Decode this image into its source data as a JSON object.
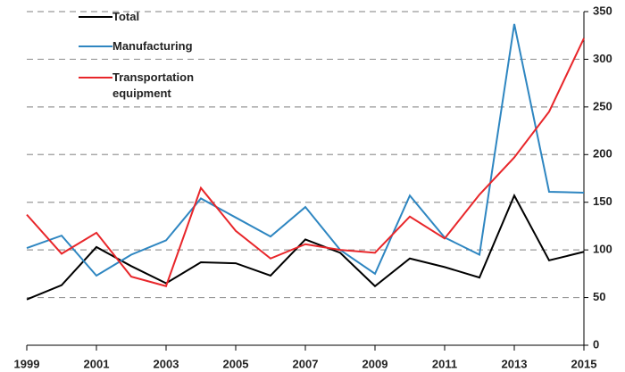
{
  "chart_data": {
    "type": "line",
    "x": [
      1999,
      2000,
      2001,
      2002,
      2003,
      2004,
      2005,
      2006,
      2007,
      2008,
      2009,
      2010,
      2011,
      2012,
      2013,
      2014,
      2015
    ],
    "series": [
      {
        "name": "Total",
        "color": "#000000",
        "values": [
          48,
          63,
          103,
          83,
          65,
          87,
          86,
          73,
          111,
          97,
          62,
          91,
          82,
          71,
          157,
          89,
          98
        ]
      },
      {
        "name": "Manufacturing",
        "color": "#2e86c1",
        "values": [
          102,
          115,
          73,
          95,
          110,
          154,
          134,
          114,
          145,
          100,
          75,
          157,
          113,
          95,
          337,
          161,
          160
        ]
      },
      {
        "name": "Transportation equipment",
        "color": "#e8262a",
        "values": [
          137,
          96,
          118,
          72,
          62,
          165,
          120,
          91,
          106,
          100,
          97,
          135,
          112,
          158,
          197,
          245,
          322
        ]
      }
    ],
    "xlim": [
      1999,
      2015
    ],
    "xticks": [
      1999,
      2001,
      2003,
      2005,
      2007,
      2009,
      2011,
      2013,
      2015
    ],
    "ylim": [
      0,
      350
    ],
    "yticks": [
      0,
      50,
      100,
      150,
      200,
      250,
      300,
      350
    ],
    "grid": true,
    "legend": "upper left"
  }
}
